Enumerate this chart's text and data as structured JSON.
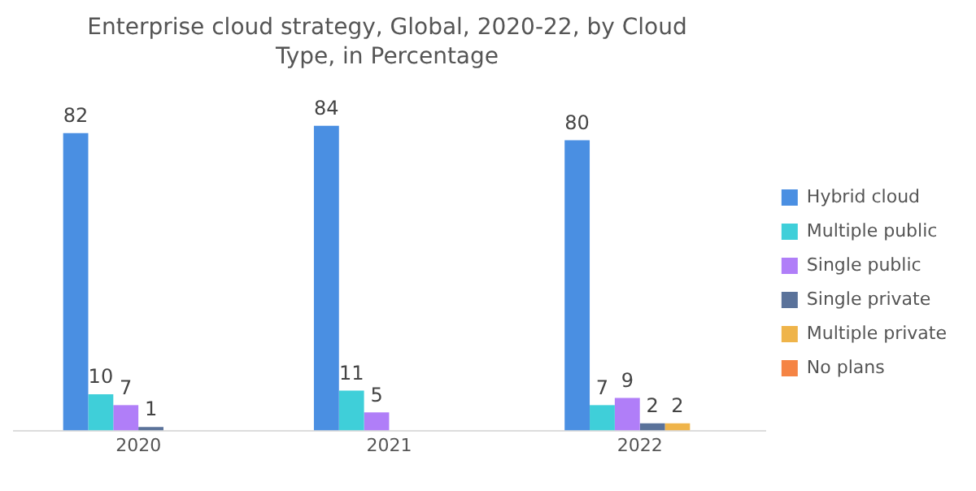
{
  "chart_data": {
    "type": "bar",
    "title": "Enterprise cloud strategy, Global, 2020-22, by Cloud Type, in Percentage",
    "categories": [
      "2020",
      "2021",
      "2022"
    ],
    "series": [
      {
        "name": "Hybrid cloud",
        "color": "#4a8fe2",
        "values": [
          82,
          84,
          80
        ]
      },
      {
        "name": "Multiple public",
        "color": "#3fcfd9",
        "values": [
          10,
          11,
          7
        ]
      },
      {
        "name": "Single public",
        "color": "#b07ef8",
        "values": [
          7,
          5,
          9
        ]
      },
      {
        "name": "Single private",
        "color": "#5a729a",
        "values": [
          1,
          null,
          2
        ]
      },
      {
        "name": "Multiple private",
        "color": "#efb44a",
        "values": [
          null,
          null,
          2
        ]
      },
      {
        "name": "No plans",
        "color": "#f58444",
        "values": [
          null,
          null,
          null
        ]
      }
    ],
    "data_labels": true,
    "legend": "right",
    "grid": false
  }
}
